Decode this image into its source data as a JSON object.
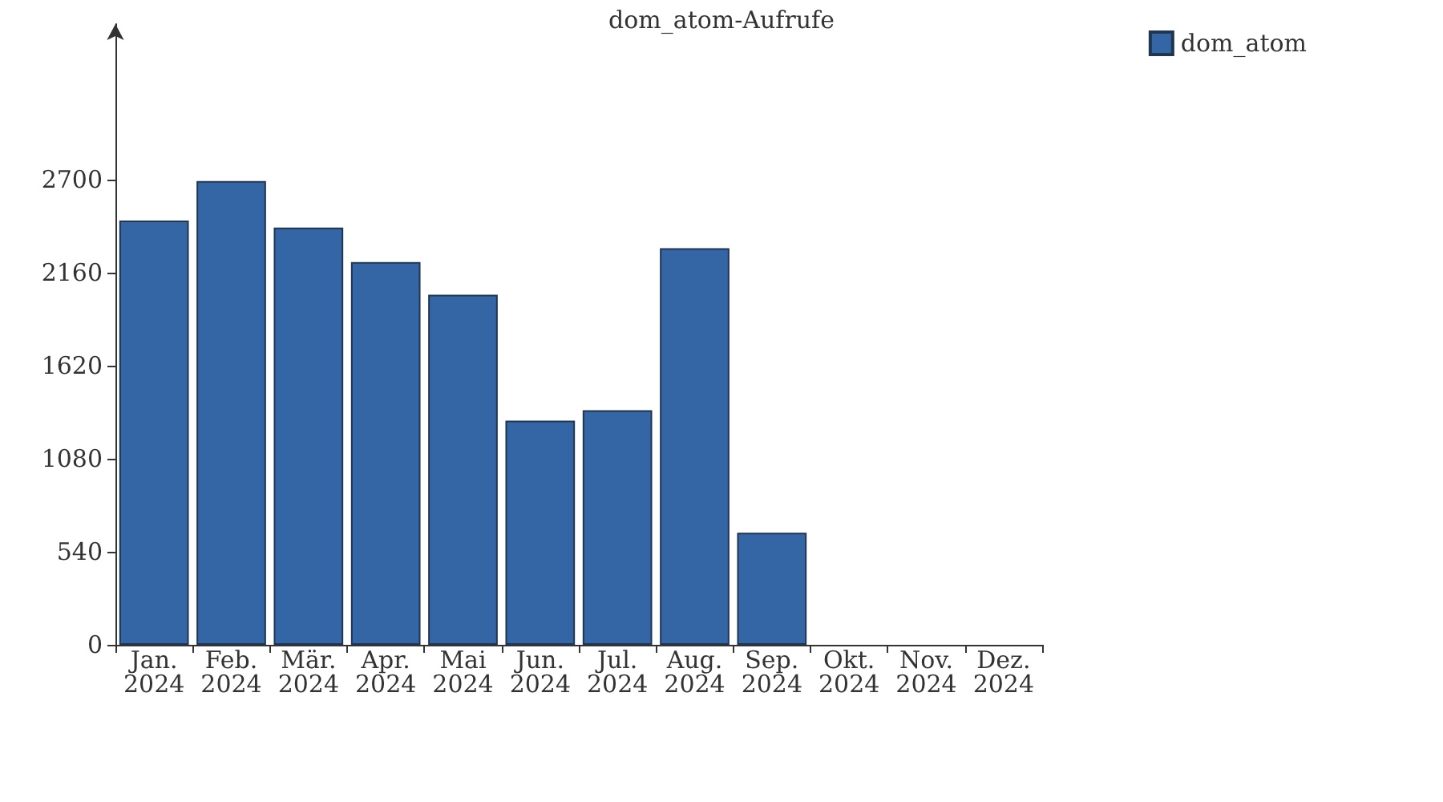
{
  "chart_data": {
    "type": "bar",
    "title": "dom_atom-Aufrufe",
    "categories": [
      "Jan.\n2024",
      "Feb.\n2024",
      "Mär.\n2024",
      "Apr.\n2024",
      "Mai\n2024",
      "Jun.\n2024",
      "Jul.\n2024",
      "Aug.\n2024",
      "Sep.\n2024",
      "Okt.\n2024",
      "Nov.\n2024",
      "Dez.\n2024"
    ],
    "series": [
      {
        "name": "dom_atom",
        "color": "#3465a4",
        "values": [
          2460,
          2690,
          2420,
          2220,
          2030,
          1300,
          1360,
          2300,
          650,
          0,
          0,
          0
        ]
      }
    ],
    "ylim": [
      0,
      3600
    ],
    "yticks": [
      0,
      540,
      1080,
      1620,
      2160,
      2700
    ],
    "grid": false,
    "legend": "top right"
  }
}
